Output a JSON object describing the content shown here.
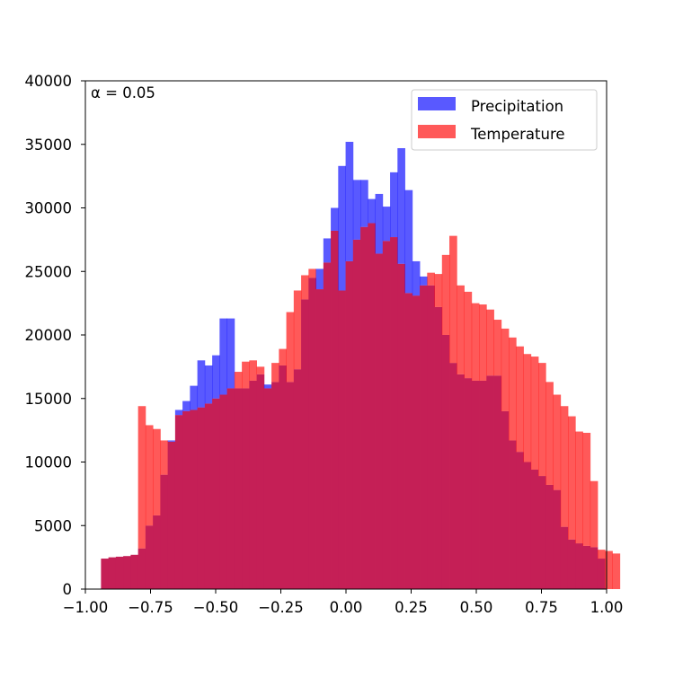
{
  "chart_data": {
    "type": "bar",
    "subtype": "overlapping-histogram",
    "title": "",
    "xlabel": "",
    "ylabel": "",
    "xlim": [
      -1.0,
      1.0
    ],
    "ylim": [
      0,
      40000
    ],
    "x_ticks": [
      -1.0,
      -0.75,
      -0.5,
      -0.25,
      0.0,
      0.25,
      0.5,
      0.75,
      1.0
    ],
    "x_tick_labels": [
      "−1.00",
      "−0.75",
      "−0.50",
      "−0.25",
      "0.00",
      "0.25",
      "0.50",
      "0.75",
      "1.00"
    ],
    "y_ticks": [
      0,
      5000,
      10000,
      15000,
      20000,
      25000,
      30000,
      35000,
      40000
    ],
    "y_tick_labels": [
      "0",
      "5000",
      "10000",
      "15000",
      "20000",
      "25000",
      "30000",
      "35000",
      "40000"
    ],
    "annotation": "α = 0.05",
    "grid": false,
    "legend_position": "top-right",
    "alpha": 0.65,
    "overlap_color": "#c51f56",
    "bin_start": -0.94,
    "bin_width": 0.02844,
    "series": [
      {
        "name": "Precipitation",
        "color": "#0000ff",
        "values": [
          2400,
          2500,
          2550,
          2600,
          2700,
          3200,
          5000,
          5800,
          9000,
          11700,
          14100,
          14800,
          16000,
          18000,
          17600,
          18400,
          21300,
          21300,
          15800,
          15800,
          16400,
          16900,
          16100,
          16300,
          17600,
          16300,
          17300,
          22800,
          24500,
          25200,
          27600,
          30000,
          33300,
          35200,
          32200,
          32200,
          30700,
          31100,
          30100,
          32800,
          34700,
          31400,
          25800,
          24600,
          23900,
          22200,
          20000,
          17800,
          16900,
          16600,
          16400,
          16400,
          16800,
          16800,
          14000,
          11700,
          10800,
          10000,
          9400,
          8900,
          8200,
          7800,
          4900,
          3900,
          3600,
          3400,
          3300,
          2400,
          0,
          0
        ]
      },
      {
        "name": "Temperature",
        "color": "#ff0000",
        "values": [
          2400,
          2500,
          2550,
          2600,
          2700,
          14400,
          12900,
          12600,
          11700,
          11600,
          13700,
          14000,
          14100,
          14300,
          14600,
          15000,
          15300,
          15800,
          17100,
          17900,
          18000,
          17500,
          15800,
          17800,
          18900,
          21800,
          23500,
          24700,
          25200,
          23600,
          25700,
          28200,
          23500,
          25800,
          27500,
          28500,
          28800,
          26400,
          27400,
          27700,
          25600,
          23300,
          23100,
          23900,
          24900,
          24800,
          26300,
          27800,
          23900,
          23400,
          22500,
          22400,
          22000,
          21200,
          20500,
          19800,
          19100,
          18500,
          18300,
          17800,
          16300,
          15300,
          14400,
          13600,
          12400,
          12300,
          8500,
          3100,
          3000,
          2800
        ]
      }
    ]
  }
}
